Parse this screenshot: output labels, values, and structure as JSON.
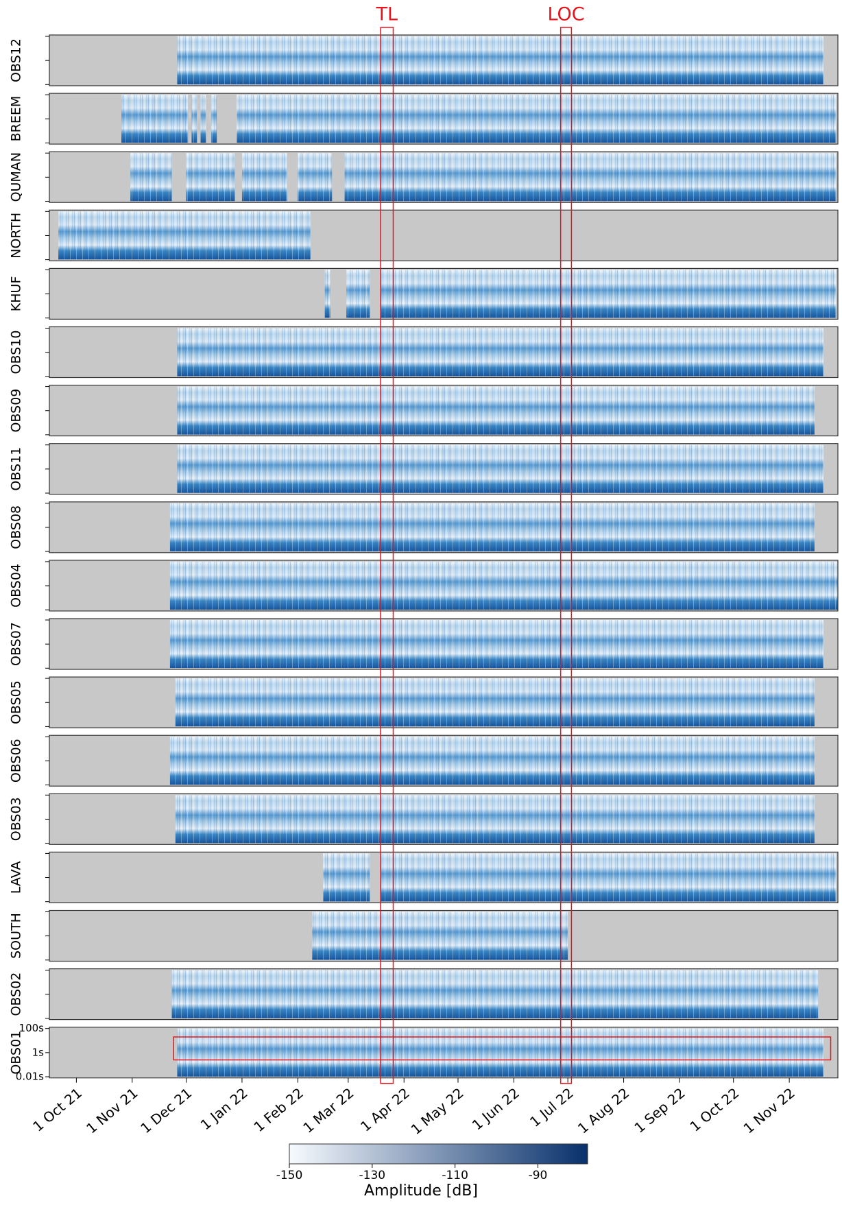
{
  "chart_data": {
    "type": "spectrogram",
    "xlim": [
      "2021-09-16",
      "2022-11-28"
    ],
    "xticks": [
      {
        "value": "2021-10-01",
        "label": "1 Oct 21"
      },
      {
        "value": "2021-11-01",
        "label": "1 Nov 21"
      },
      {
        "value": "2021-12-01",
        "label": "1 Dec 21"
      },
      {
        "value": "2022-01-01",
        "label": "1 Jan 22"
      },
      {
        "value": "2022-02-01",
        "label": "1 Feb 22"
      },
      {
        "value": "2022-03-01",
        "label": "1 Mar 22"
      },
      {
        "value": "2022-04-01",
        "label": "1 Apr 22"
      },
      {
        "value": "2022-05-01",
        "label": "1 May 22"
      },
      {
        "value": "2022-06-01",
        "label": "1 Jun 22"
      },
      {
        "value": "2022-07-01",
        "label": "1 Jul 22"
      },
      {
        "value": "2022-08-01",
        "label": "1 Aug 22"
      },
      {
        "value": "2022-09-01",
        "label": "1 Sep 22"
      },
      {
        "value": "2022-10-01",
        "label": "1 Oct 22"
      },
      {
        "value": "2022-11-01",
        "label": "1 Nov 22"
      }
    ],
    "ylim": [
      0.008,
      130
    ],
    "y_scale": "log",
    "yticks": [
      {
        "value": 100,
        "label": "100s"
      },
      {
        "value": 1,
        "label": "1s"
      },
      {
        "value": 0.01,
        "label": "0.01s"
      }
    ],
    "series": [
      {
        "name": "OBS12",
        "spans": [
          [
            "2021-11-26",
            "2022-11-20"
          ]
        ]
      },
      {
        "name": "BREEM",
        "spans": [
          [
            "2021-10-26",
            "2021-12-02"
          ],
          [
            "2021-12-04",
            "2021-12-07"
          ],
          [
            "2021-12-09",
            "2021-12-12"
          ],
          [
            "2021-12-15",
            "2021-12-18"
          ],
          [
            "2021-12-29",
            "2022-11-27"
          ]
        ]
      },
      {
        "name": "QUMAN",
        "spans": [
          [
            "2021-10-31",
            "2021-11-23"
          ],
          [
            "2021-12-01",
            "2021-12-28"
          ],
          [
            "2022-01-01",
            "2022-01-26"
          ],
          [
            "2022-02-01",
            "2022-02-20"
          ],
          [
            "2022-02-27",
            "2022-11-27"
          ]
        ]
      },
      {
        "name": "NORTH",
        "spans": [
          [
            "2021-09-21",
            "2022-02-08"
          ]
        ]
      },
      {
        "name": "KHUF",
        "spans": [
          [
            "2022-02-16",
            "2022-02-19"
          ],
          [
            "2022-02-28",
            "2022-03-13"
          ],
          [
            "2022-03-19",
            "2022-11-27"
          ]
        ]
      },
      {
        "name": "OBS10",
        "spans": [
          [
            "2021-11-26",
            "2022-11-20"
          ]
        ]
      },
      {
        "name": "OBS09",
        "spans": [
          [
            "2021-11-26",
            "2022-11-15"
          ]
        ]
      },
      {
        "name": "OBS11",
        "spans": [
          [
            "2021-11-26",
            "2022-11-20"
          ]
        ]
      },
      {
        "name": "OBS08",
        "spans": [
          [
            "2021-11-22",
            "2022-11-15"
          ]
        ]
      },
      {
        "name": "OBS04",
        "spans": [
          [
            "2021-11-22",
            "2022-11-28"
          ]
        ]
      },
      {
        "name": "OBS07",
        "spans": [
          [
            "2021-11-22",
            "2022-11-20"
          ]
        ]
      },
      {
        "name": "OBS05",
        "spans": [
          [
            "2021-11-25",
            "2022-11-15"
          ]
        ]
      },
      {
        "name": "OBS06",
        "spans": [
          [
            "2021-11-22",
            "2022-11-15"
          ]
        ]
      },
      {
        "name": "OBS03",
        "spans": [
          [
            "2021-11-25",
            "2022-11-15"
          ]
        ]
      },
      {
        "name": "LAVA",
        "spans": [
          [
            "2022-02-15",
            "2022-03-13"
          ],
          [
            "2022-03-19",
            "2022-11-27"
          ]
        ]
      },
      {
        "name": "SOUTH",
        "spans": [
          [
            "2022-02-09",
            "2022-07-01"
          ]
        ]
      },
      {
        "name": "OBS02",
        "spans": [
          [
            "2021-11-23",
            "2022-11-17"
          ]
        ]
      },
      {
        "name": "OBS01",
        "spans": [
          [
            "2021-11-26",
            "2022-11-20"
          ]
        ]
      }
    ],
    "annotations": [
      {
        "text": "TL",
        "x": [
          "2022-03-19",
          "2022-03-26"
        ]
      },
      {
        "text": "LOC",
        "x": [
          "2022-06-27",
          "2022-07-03"
        ]
      }
    ],
    "highlight": {
      "x": [
        "2021-11-24",
        "2022-11-24"
      ],
      "y": [
        20,
        0.25
      ]
    },
    "colorbar": {
      "label": "Amplitude [dB]",
      "clim": [
        -150,
        -78
      ],
      "ticks": [
        -150,
        -130,
        -110,
        -90
      ],
      "colors": [
        "#f7fbff",
        "#08306b"
      ]
    }
  }
}
